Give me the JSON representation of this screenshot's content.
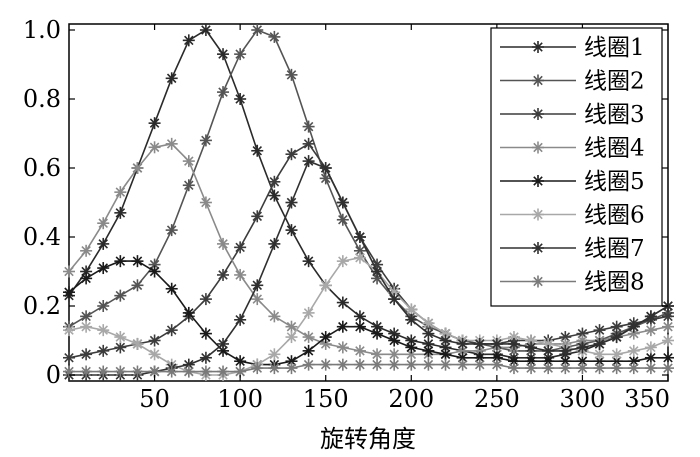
{
  "chart_data": {
    "type": "line",
    "title": "",
    "xlabel": "旋转角度",
    "ylabel": "",
    "xlim": [
      0,
      350
    ],
    "ylim": [
      0,
      1.0
    ],
    "x_ticks": [
      50,
      100,
      150,
      200,
      250,
      300,
      350
    ],
    "x_tick_labels": [
      "50",
      "100",
      "150",
      "200",
      "250",
      "300",
      "350"
    ],
    "y_ticks": [
      0,
      0.2,
      0.4,
      0.6,
      0.8,
      1.0
    ],
    "y_tick_labels": [
      "0",
      "0.2",
      "0.4",
      "0.6",
      "0.8",
      "1.0"
    ],
    "grid": false,
    "legend_position": "top-right",
    "marker": "asterisk",
    "x": [
      0,
      10,
      20,
      30,
      40,
      50,
      60,
      70,
      80,
      90,
      100,
      110,
      120,
      130,
      140,
      150,
      160,
      170,
      180,
      190,
      200,
      210,
      220,
      230,
      240,
      250,
      260,
      270,
      280,
      290,
      300,
      310,
      320,
      330,
      340,
      350
    ],
    "series": [
      {
        "name": "线圈1",
        "color": "#2a2a2a",
        "values": [
          0.23,
          0.3,
          0.38,
          0.47,
          0.6,
          0.73,
          0.86,
          0.97,
          1.0,
          0.93,
          0.8,
          0.65,
          0.52,
          0.42,
          0.33,
          0.26,
          0.21,
          0.17,
          0.14,
          0.12,
          0.1,
          0.09,
          0.08,
          0.07,
          0.06,
          0.06,
          0.05,
          0.05,
          0.05,
          0.06,
          0.07,
          0.09,
          0.11,
          0.14,
          0.17,
          0.2
        ]
      },
      {
        "name": "线圈2",
        "color": "#545454",
        "values": [
          0.14,
          0.17,
          0.2,
          0.23,
          0.26,
          0.32,
          0.42,
          0.55,
          0.68,
          0.82,
          0.93,
          1.0,
          0.98,
          0.87,
          0.72,
          0.57,
          0.45,
          0.36,
          0.28,
          0.22,
          0.17,
          0.14,
          0.12,
          0.1,
          0.09,
          0.08,
          0.07,
          0.07,
          0.07,
          0.08,
          0.09,
          0.1,
          0.12,
          0.14,
          0.16,
          0.18
        ]
      },
      {
        "name": "线圈3",
        "color": "#3c3c3c",
        "values": [
          0.05,
          0.06,
          0.07,
          0.08,
          0.09,
          0.1,
          0.13,
          0.17,
          0.22,
          0.29,
          0.37,
          0.46,
          0.56,
          0.64,
          0.67,
          0.6,
          0.5,
          0.4,
          0.32,
          0.25,
          0.19,
          0.15,
          0.12,
          0.1,
          0.09,
          0.09,
          0.1,
          0.1,
          0.1,
          0.11,
          0.12,
          0.13,
          0.14,
          0.15,
          0.16,
          0.17
        ]
      },
      {
        "name": "线圈4",
        "color": "#8a8a8a",
        "values": [
          0.3,
          0.36,
          0.44,
          0.53,
          0.6,
          0.66,
          0.67,
          0.62,
          0.5,
          0.38,
          0.29,
          0.22,
          0.17,
          0.14,
          0.11,
          0.09,
          0.08,
          0.07,
          0.06,
          0.06,
          0.06,
          0.06,
          0.06,
          0.07,
          0.07,
          0.08,
          0.08,
          0.09,
          0.09,
          0.09,
          0.1,
          0.1,
          0.11,
          0.12,
          0.13,
          0.14
        ]
      },
      {
        "name": "线圈5",
        "color": "#1a1a1a",
        "values": [
          0.24,
          0.28,
          0.31,
          0.33,
          0.33,
          0.3,
          0.25,
          0.18,
          0.12,
          0.07,
          0.04,
          0.03,
          0.03,
          0.04,
          0.07,
          0.11,
          0.14,
          0.14,
          0.12,
          0.1,
          0.08,
          0.07,
          0.06,
          0.05,
          0.05,
          0.05,
          0.04,
          0.04,
          0.04,
          0.04,
          0.04,
          0.04,
          0.04,
          0.04,
          0.05,
          0.05
        ]
      },
      {
        "name": "线圈6",
        "color": "#a8a8a8",
        "values": [
          0.13,
          0.14,
          0.13,
          0.11,
          0.09,
          0.06,
          0.03,
          0.01,
          0.0,
          0.0,
          0.01,
          0.03,
          0.06,
          0.11,
          0.18,
          0.26,
          0.33,
          0.34,
          0.3,
          0.24,
          0.19,
          0.15,
          0.12,
          0.1,
          0.1,
          0.1,
          0.11,
          0.1,
          0.09,
          0.08,
          0.07,
          0.06,
          0.06,
          0.07,
          0.08,
          0.1
        ]
      },
      {
        "name": "线圈7",
        "color": "#303030",
        "values": [
          0.0,
          0.0,
          0.0,
          0.0,
          0.0,
          0.01,
          0.02,
          0.03,
          0.05,
          0.09,
          0.16,
          0.26,
          0.38,
          0.5,
          0.62,
          0.6,
          0.5,
          0.4,
          0.3,
          0.22,
          0.16,
          0.12,
          0.1,
          0.09,
          0.09,
          0.09,
          0.09,
          0.08,
          0.07,
          0.07,
          0.08,
          0.09,
          0.11,
          0.14,
          0.17,
          0.2
        ]
      },
      {
        "name": "线圈8",
        "color": "#7a7a7a",
        "values": [
          0.01,
          0.01,
          0.01,
          0.01,
          0.01,
          0.01,
          0.01,
          0.01,
          0.01,
          0.01,
          0.01,
          0.02,
          0.02,
          0.02,
          0.03,
          0.03,
          0.03,
          0.03,
          0.03,
          0.03,
          0.03,
          0.03,
          0.03,
          0.03,
          0.03,
          0.03,
          0.02,
          0.02,
          0.02,
          0.02,
          0.02,
          0.02,
          0.02,
          0.02,
          0.02,
          0.02
        ]
      }
    ]
  }
}
